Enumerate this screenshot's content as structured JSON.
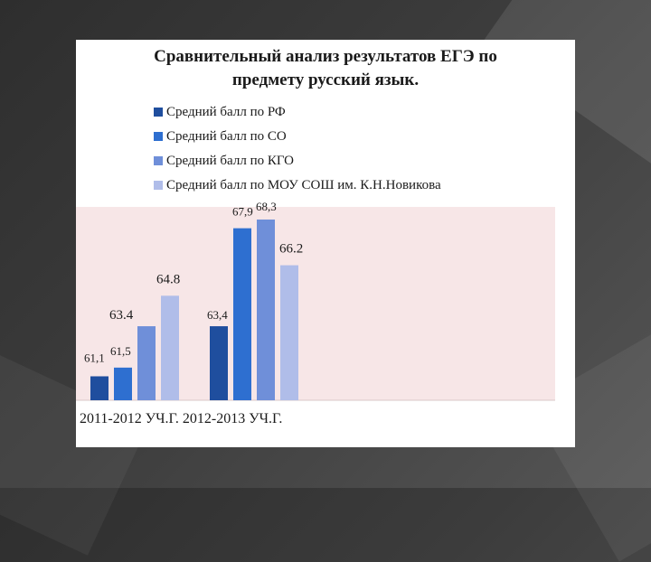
{
  "slide": {
    "title_line1": "Сравнительный анализ результатов ЕГЭ по",
    "title_line2": "предмету русский язык."
  },
  "chart_data": {
    "type": "bar",
    "title": "Сравнительный анализ результатов ЕГЭ по предмету русский язык.",
    "categories": [
      "2011-2012 УЧ.Г.",
      "2012-2013 УЧ.Г."
    ],
    "legend_position": "top",
    "ylim": [
      60,
      69
    ],
    "grid": false,
    "series": [
      {
        "name": "Средний балл по РФ",
        "color": "#1f4e9e",
        "values": [
          61.1,
          63.4
        ],
        "labels": [
          "61,1",
          "63,4"
        ]
      },
      {
        "name": "Средний балл по СО",
        "color": "#2e6fd0",
        "values": [
          61.5,
          67.9
        ],
        "labels": [
          "61,5",
          "67,9"
        ]
      },
      {
        "name": "Средний балл по КГО",
        "color": "#6f8fd9",
        "values": [
          63.4,
          68.3
        ],
        "labels": [
          "63.4",
          "68,3"
        ]
      },
      {
        "name": "Средний балл по МОУ СОШ им. К.Н.Новикова",
        "color": "#b0bde9",
        "values": [
          64.8,
          66.2
        ],
        "labels": [
          "64.8",
          "66.2"
        ]
      }
    ]
  }
}
